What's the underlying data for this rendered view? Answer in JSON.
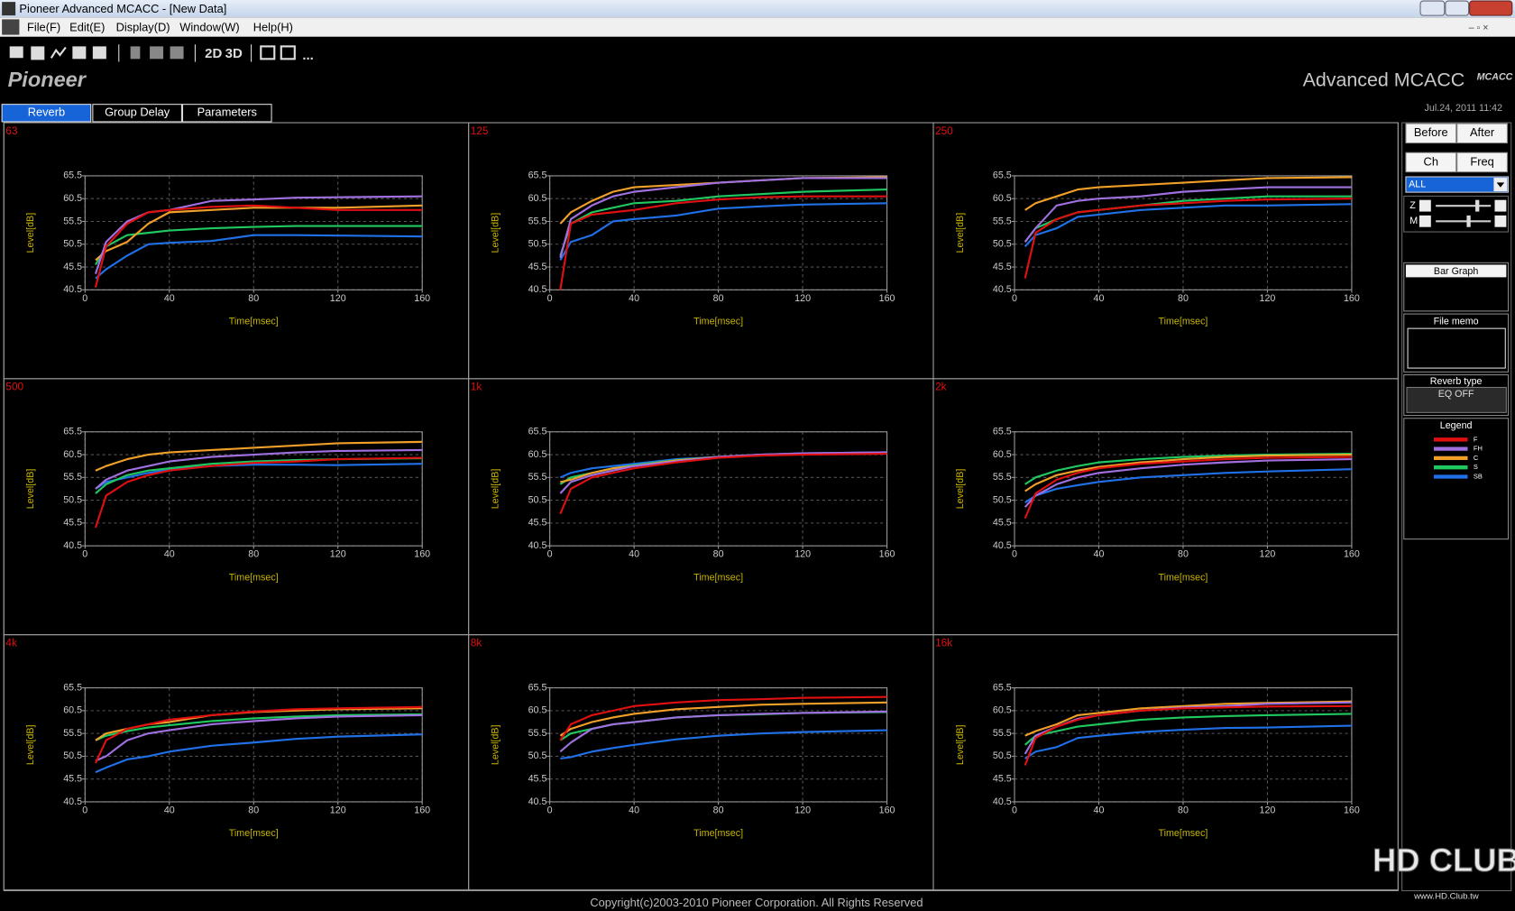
{
  "window": {
    "title": "Pioneer Advanced MCACC - [New Data]"
  },
  "menu": [
    "File(F)",
    "Edit(E)",
    "Display(D)",
    "Window(W)",
    "Help(H)"
  ],
  "toolbar": [
    "2D",
    "3D"
  ],
  "header": {
    "brand": "Pioneer",
    "product": "Advanced MCACC",
    "logo": "MCACC",
    "datetime": "Jul.24, 2011 11:42"
  },
  "tabs": [
    {
      "label": "Reverb",
      "active": true
    },
    {
      "label": "Group Delay",
      "active": false
    },
    {
      "label": "Parameters",
      "active": false
    }
  ],
  "chart_data": [
    {
      "type": "line",
      "title": "63",
      "ylabel": "Level[dB]",
      "xlabel": "Time[msec]",
      "grid": true,
      "x": [
        5,
        10,
        20,
        30,
        40,
        60,
        80,
        100,
        120,
        160
      ],
      "xlim": [
        0,
        160
      ],
      "ylim": [
        40.5,
        65.5
      ],
      "xticks": [
        0,
        40,
        80,
        120,
        160
      ],
      "yticks": [
        40.5,
        45.5,
        50.5,
        55.5,
        60.5,
        65.5
      ],
      "series": [
        {
          "values": [
            41,
            50,
            55,
            57.5,
            58,
            58.7,
            59,
            58.5,
            58,
            58
          ]
        },
        {
          "values": [
            44,
            51,
            55.5,
            57.5,
            58,
            60,
            60.3,
            60.7,
            60.8,
            61
          ]
        },
        {
          "values": [
            47,
            49,
            51,
            55,
            57.5,
            58,
            58.5,
            58.5,
            58.5,
            59
          ]
        },
        {
          "values": [
            46,
            50,
            52.5,
            53,
            53.5,
            54,
            54.3,
            54.5,
            54.5,
            54.5
          ]
        },
        {
          "values": [
            43,
            45,
            48,
            50.5,
            50.8,
            51.2,
            52.5,
            52.5,
            52.4,
            52.2
          ]
        }
      ]
    },
    {
      "type": "line",
      "title": "125",
      "ylabel": "Level[dB]",
      "xlabel": "Time[msec]",
      "grid": true,
      "x": [
        5,
        10,
        20,
        30,
        40,
        60,
        80,
        100,
        120,
        160
      ],
      "xlim": [
        0,
        160
      ],
      "ylim": [
        40.5,
        65.5
      ],
      "xticks": [
        0,
        40,
        80,
        120,
        160
      ],
      "yticks": [
        40.5,
        45.5,
        50.5,
        55.5,
        60.5,
        65.5
      ],
      "series": [
        {
          "values": [
            40.5,
            55,
            57,
            57.5,
            58,
            59.5,
            60.3,
            60.8,
            61,
            61
          ]
        },
        {
          "values": [
            47.5,
            56,
            59,
            61,
            62,
            63,
            64,
            64.5,
            65,
            65
          ]
        },
        {
          "values": [
            55,
            57.5,
            60,
            62,
            63,
            63.5,
            64,
            64.5,
            65,
            65.2
          ]
        },
        {
          "values": [
            48,
            55,
            57.5,
            58.5,
            59.5,
            60,
            61,
            61.5,
            62,
            62.5
          ]
        },
        {
          "values": [
            47,
            51,
            52.5,
            55.5,
            56,
            56.8,
            58.3,
            58.8,
            59.2,
            59.5
          ]
        }
      ]
    },
    {
      "type": "line",
      "title": "250",
      "ylabel": "Level[dB]",
      "xlabel": "Time[msec]",
      "grid": true,
      "x": [
        5,
        10,
        20,
        30,
        40,
        60,
        80,
        100,
        120,
        160
      ],
      "xlim": [
        0,
        160
      ],
      "ylim": [
        40.5,
        65.5
      ],
      "xticks": [
        0,
        40,
        80,
        120,
        160
      ],
      "yticks": [
        40.5,
        45.5,
        50.5,
        55.5,
        60.5,
        65.5
      ],
      "series": [
        {
          "values": [
            43,
            53,
            56,
            57.5,
            58,
            59,
            59.5,
            60,
            60.3,
            60.5
          ]
        },
        {
          "values": [
            51,
            54,
            59,
            60,
            60.5,
            61,
            62,
            62.5,
            63,
            63
          ]
        },
        {
          "values": [
            58,
            59.5,
            61,
            62.5,
            63,
            63.5,
            64,
            64.5,
            65,
            65.2
          ]
        },
        {
          "values": [
            51,
            54,
            56,
            57.5,
            58,
            59,
            60,
            60.5,
            61,
            61
          ]
        },
        {
          "values": [
            50,
            52.5,
            54,
            56.5,
            57,
            58,
            58.5,
            59,
            59,
            59.3
          ]
        }
      ]
    },
    {
      "type": "line",
      "title": "500",
      "ylabel": "Level[dB]",
      "xlabel": "Time[msec]",
      "grid": true,
      "x": [
        5,
        10,
        20,
        30,
        40,
        60,
        80,
        100,
        120,
        160
      ],
      "xlim": [
        0,
        160
      ],
      "ylim": [
        40.5,
        65.5
      ],
      "xticks": [
        0,
        40,
        80,
        120,
        160
      ],
      "yticks": [
        40.5,
        45.5,
        50.5,
        55.5,
        60.5,
        65.5
      ],
      "series": [
        {
          "values": [
            44.5,
            51.5,
            54.5,
            56,
            57,
            58,
            58.7,
            59,
            59.5,
            59.8
          ]
        },
        {
          "values": [
            53,
            55,
            57,
            58,
            59,
            60,
            60.5,
            61,
            61.3,
            61.5
          ]
        },
        {
          "values": [
            57,
            58,
            59.5,
            60.5,
            61,
            61.5,
            62,
            62.5,
            63,
            63.3
          ]
        },
        {
          "values": [
            52,
            54,
            56,
            57,
            57.5,
            58.5,
            59,
            59.3,
            59.5,
            59.7
          ]
        },
        {
          "values": [
            53,
            54.5,
            55.5,
            56.5,
            57.2,
            58,
            58.3,
            58.3,
            58.2,
            58.5
          ]
        }
      ]
    },
    {
      "type": "line",
      "title": "1k",
      "ylabel": "Level[dB]",
      "xlabel": "Time[msec]",
      "grid": true,
      "x": [
        5,
        10,
        20,
        30,
        40,
        60,
        80,
        100,
        120,
        160
      ],
      "xlim": [
        0,
        160
      ],
      "ylim": [
        40.5,
        65.5
      ],
      "xticks": [
        0,
        40,
        80,
        120,
        160
      ],
      "yticks": [
        40.5,
        45.5,
        50.5,
        55.5,
        60.5,
        65.5
      ],
      "series": [
        {
          "values": [
            47.5,
            53,
            55.5,
            56.5,
            57.5,
            58.8,
            59.8,
            60.3,
            60.5,
            60.7
          ]
        },
        {
          "values": [
            52,
            54.5,
            56,
            57,
            58,
            59,
            60,
            60.5,
            60.8,
            61
          ]
        },
        {
          "values": [
            54.5,
            55,
            56.5,
            57.5,
            58,
            59.2,
            60,
            60.5,
            60.7,
            60.8
          ]
        },
        {
          "values": [
            54,
            55.5,
            56.5,
            57.5,
            58.2,
            59.3,
            60,
            60.3,
            60.6,
            60.8
          ]
        },
        {
          "values": [
            55.5,
            56.5,
            57.5,
            58,
            58.5,
            59.5,
            60,
            60.5,
            60.8,
            61
          ]
        }
      ]
    },
    {
      "type": "line",
      "title": "2k",
      "ylabel": "Level[dB]",
      "xlabel": "Time[msec]",
      "grid": true,
      "x": [
        5,
        10,
        20,
        30,
        40,
        60,
        80,
        100,
        120,
        160
      ],
      "xlim": [
        0,
        160
      ],
      "ylim": [
        40.5,
        65.5
      ],
      "xticks": [
        0,
        40,
        80,
        120,
        160
      ],
      "yticks": [
        40.5,
        45.5,
        50.5,
        55.5,
        60.5,
        65.5
      ],
      "series": [
        {
          "values": [
            46.5,
            52,
            55,
            56.5,
            57.5,
            58.5,
            59,
            59.5,
            59.8,
            60
          ]
        },
        {
          "values": [
            49,
            51.5,
            54,
            55.5,
            56.5,
            57.5,
            58.3,
            58.8,
            59.2,
            59.5
          ]
        },
        {
          "values": [
            52.5,
            54,
            56,
            57,
            57.8,
            58.8,
            59.5,
            60,
            60.3,
            60.5
          ]
        },
        {
          "values": [
            54,
            55.5,
            57,
            58,
            58.8,
            59.5,
            60,
            60.3,
            60.5,
            60.7
          ]
        },
        {
          "values": [
            50,
            51.5,
            53,
            53.8,
            54.5,
            55.5,
            56,
            56.5,
            56.8,
            57.3
          ]
        }
      ]
    },
    {
      "type": "line",
      "title": "4k",
      "ylabel": "Level[dB]",
      "xlabel": "Time[msec]",
      "grid": true,
      "x": [
        5,
        10,
        20,
        30,
        40,
        60,
        80,
        100,
        120,
        160
      ],
      "xlim": [
        0,
        160
      ],
      "ylim": [
        40.5,
        65.5
      ],
      "xticks": [
        0,
        40,
        80,
        120,
        160
      ],
      "yticks": [
        40.5,
        45.5,
        50.5,
        55.5,
        60.5,
        65.5
      ],
      "series": [
        {
          "values": [
            49,
            54,
            56.5,
            57.5,
            58.5,
            59.5,
            60.3,
            60.8,
            61,
            61.3
          ]
        },
        {
          "values": [
            49.5,
            50.5,
            54,
            55.5,
            56.2,
            57.5,
            58.2,
            58.8,
            59.2,
            59.5
          ]
        },
        {
          "values": [
            54,
            55.5,
            56.5,
            57.5,
            58,
            59.5,
            60.2,
            60.5,
            60.8,
            61
          ]
        },
        {
          "values": [
            54,
            55,
            56,
            56.8,
            57.3,
            58.2,
            58.8,
            59.2,
            59.5,
            59.7
          ]
        },
        {
          "values": [
            47,
            48,
            49.8,
            50.5,
            51.5,
            52.8,
            53.5,
            54.3,
            54.8,
            55.3
          ]
        }
      ]
    },
    {
      "type": "line",
      "title": "8k",
      "ylabel": "Level[dB]",
      "xlabel": "Time[msec]",
      "grid": true,
      "x": [
        5,
        10,
        20,
        30,
        40,
        60,
        80,
        100,
        120,
        160
      ],
      "xlim": [
        0,
        160
      ],
      "ylim": [
        40.5,
        65.5
      ],
      "xticks": [
        0,
        40,
        80,
        120,
        160
      ],
      "yticks": [
        40.5,
        45.5,
        50.5,
        55.5,
        60.5,
        65.5
      ],
      "series": [
        {
          "values": [
            54,
            57.5,
            59.5,
            60.5,
            61.5,
            62.3,
            62.8,
            63,
            63.3,
            63.5
          ]
        },
        {
          "values": [
            51.5,
            53.5,
            56.5,
            57.5,
            58,
            59,
            59.5,
            59.8,
            60,
            60.3
          ]
        },
        {
          "values": [
            55,
            56.5,
            58,
            59,
            59.8,
            60.8,
            61.3,
            61.8,
            62,
            62.3
          ]
        },
        {
          "values": [
            54,
            55.5,
            56.5,
            57.5,
            58,
            59,
            59.5,
            59.7,
            60,
            60.2
          ]
        },
        {
          "values": [
            50,
            50.3,
            51.5,
            52.3,
            53,
            54.2,
            55,
            55.5,
            55.8,
            56.2
          ]
        }
      ]
    },
    {
      "type": "line",
      "title": "16k",
      "ylabel": "Level[dB]",
      "xlabel": "Time[msec]",
      "grid": true,
      "x": [
        5,
        10,
        20,
        30,
        40,
        60,
        80,
        100,
        120,
        160
      ],
      "xlim": [
        0,
        160
      ],
      "ylim": [
        40.5,
        65.5
      ],
      "xticks": [
        0,
        40,
        80,
        120,
        160
      ],
      "yticks": [
        40.5,
        45.5,
        50.5,
        55.5,
        60.5,
        65.5
      ],
      "series": [
        {
          "values": [
            48.5,
            54.5,
            57,
            58.5,
            59.5,
            60.5,
            61,
            61.2,
            61.4,
            61.5
          ]
        },
        {
          "values": [
            51,
            55,
            57,
            58.7,
            59.5,
            60.5,
            61.2,
            61.5,
            62,
            62.3
          ]
        },
        {
          "values": [
            55,
            56,
            57.5,
            59.5,
            60,
            61,
            61.5,
            62,
            62.2,
            62.5
          ]
        },
        {
          "values": [
            53,
            55,
            56,
            57,
            57.5,
            58.5,
            59,
            59.3,
            59.5,
            59.8
          ]
        },
        {
          "values": [
            50,
            51.5,
            52.5,
            54.5,
            55,
            55.8,
            56.3,
            56.7,
            56.8,
            57.2
          ]
        }
      ]
    }
  ],
  "sidebar": {
    "compare": [
      "Before",
      "After"
    ],
    "mode": [
      "Ch",
      "Freq"
    ],
    "channel": "ALL",
    "sliders": [
      "Z",
      "M"
    ],
    "bar_graph": "Bar Graph",
    "file_memo": "File memo",
    "reverb_type": {
      "label": "Reverb type",
      "value": "EQ OFF"
    },
    "legend": {
      "title": "Legend",
      "entries": [
        {
          "name": "F",
          "color": "#e01010"
        },
        {
          "name": "FH",
          "color": "#a070e0"
        },
        {
          "name": "C",
          "color": "#f0a028"
        },
        {
          "name": "S",
          "color": "#20c860"
        },
        {
          "name": "SB",
          "color": "#2070e8"
        }
      ]
    }
  },
  "footer": "Copyright(c)2003-2010 Pioneer Corporation. All Rights Reserved",
  "watermark": {
    "logo": "HD CLUB",
    "url": "www.HD.Club.tw"
  }
}
